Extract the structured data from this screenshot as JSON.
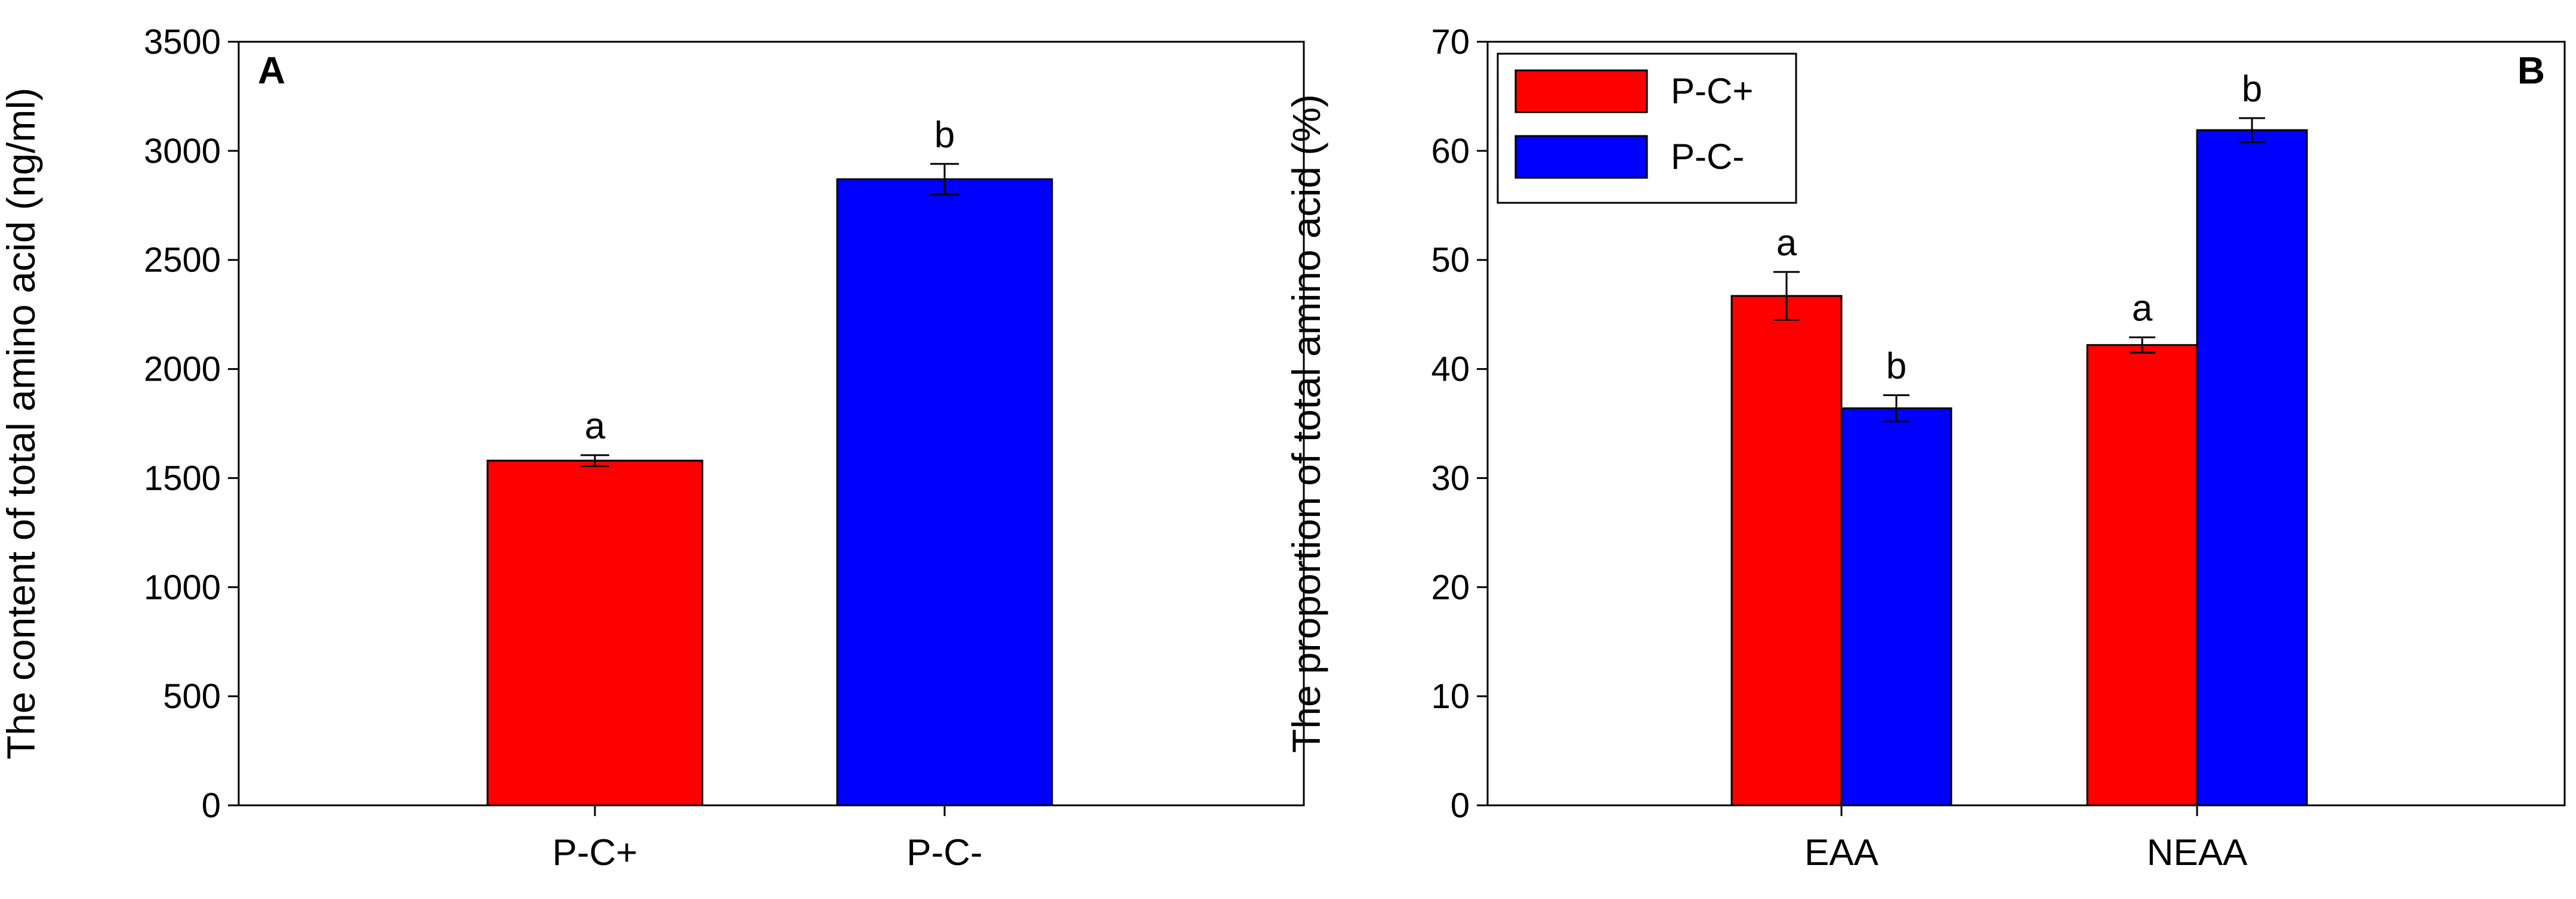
{
  "chart_data": [
    {
      "type": "bar",
      "panel_label": "A",
      "categories": [
        "P-C+",
        "P-C-"
      ],
      "values": [
        1580,
        2870
      ],
      "errors": [
        25,
        70
      ],
      "bar_colors": [
        "#ff0000",
        "#0000ff"
      ],
      "significance": [
        "a",
        "b"
      ],
      "ylabel": "The content of total amino acid (ng/ml)",
      "ylim": [
        0,
        3500
      ],
      "yticks": [
        0,
        500,
        1000,
        1500,
        2000,
        2500,
        3000,
        3500
      ],
      "grid": false,
      "legend": null
    },
    {
      "type": "bar",
      "panel_label": "B",
      "categories": [
        "EAA",
        "NEAA"
      ],
      "series": [
        {
          "name": "P-C+",
          "color": "#ff0000",
          "values": [
            46.7,
            42.2
          ],
          "errors": [
            2.2,
            0.7
          ],
          "significance": [
            "a",
            "a"
          ]
        },
        {
          "name": "P-C-",
          "color": "#0000ff",
          "values": [
            36.4,
            61.9
          ],
          "errors": [
            1.2,
            1.1
          ],
          "significance": [
            "b",
            "b"
          ]
        }
      ],
      "ylabel": "The proportion of total amino acid (%)",
      "ylim": [
        0,
        70
      ],
      "yticks": [
        0,
        10,
        20,
        30,
        40,
        50,
        60,
        70
      ],
      "grid": false,
      "legend": "top-left"
    }
  ]
}
